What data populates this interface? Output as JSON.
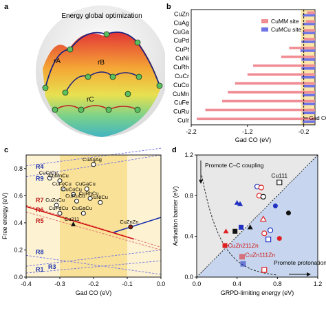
{
  "panel_labels": {
    "a": "a",
    "b": "b",
    "c": "c",
    "d": "d"
  },
  "panel_a": {
    "title": "Energy global optimization",
    "path_labels": [
      "rA",
      "rB",
      "rC"
    ]
  },
  "chart_data": [
    {
      "panel": "b",
      "type": "bar",
      "orientation": "horizontal",
      "categories": [
        "CuZn",
        "CuAg",
        "CuGa",
        "CuPd",
        "CuPt",
        "CuNi",
        "CuRh",
        "CuCr",
        "CuCo",
        "CuMn",
        "CuFe",
        "CuRu",
        "CuIr"
      ],
      "series": [
        {
          "name": "CuMM site",
          "color": "#f08c94",
          "values": [
            -0.14,
            -0.16,
            -0.2,
            -0.2,
            -0.46,
            -0.6,
            -1.1,
            -1.2,
            -1.42,
            -1.55,
            -1.65,
            -1.95,
            -2.1
          ]
        },
        {
          "name": "CuMCu site",
          "color": "#6e74e6",
          "values": [
            -0.22,
            -0.22,
            -0.22,
            -0.24,
            -0.26,
            -0.24,
            -0.24,
            -0.24,
            -0.2,
            -0.22,
            -0.22,
            -0.22,
            -0.22
          ]
        }
      ],
      "xlabel": "Gad CO (eV)",
      "xlim": [
        -2.2,
        0.0
      ],
      "xticks": [
        "-2.2",
        "-1.2",
        "-0.2"
      ],
      "reference_line": {
        "x": -0.2,
        "label": "Gad CO* on Cu"
      },
      "legend": "top-right"
    },
    {
      "panel": "c",
      "type": "scatter",
      "xlabel": "Gad CO (eV)",
      "ylabel": "Free energy (eV)",
      "xlim": [
        -0.4,
        0.0
      ],
      "ylim": [
        0.0,
        0.9
      ],
      "xticks": [
        "-0.4",
        "-0.3",
        "-0.2",
        "-0.1",
        "0.0"
      ],
      "yticks": [
        "0.0",
        "0.2",
        "0.4",
        "0.6",
        "0.8"
      ],
      "line_labels": [
        "R4",
        "R9",
        "R7",
        "R6",
        "R5",
        "R8",
        "R1",
        "R3"
      ],
      "points": [
        {
          "label": "CuAgAg",
          "x": -0.2,
          "y": 0.83,
          "marker": "circle"
        },
        {
          "label": "CuCrCu",
          "x": -0.33,
          "y": 0.73,
          "marker": "circle"
        },
        {
          "label": "CuMnCu",
          "x": -0.3,
          "y": 0.71,
          "marker": "circle"
        },
        {
          "label": "CuFeCu",
          "x": -0.29,
          "y": 0.65,
          "marker": "circle"
        },
        {
          "label": "CuGaCu",
          "x": -0.22,
          "y": 0.65,
          "marker": "circle"
        },
        {
          "label": "CuCoCu",
          "x": -0.26,
          "y": 0.61,
          "marker": "circle"
        },
        {
          "label": "CuRuCu",
          "x": -0.25,
          "y": 0.56,
          "marker": "circle"
        },
        {
          "label": "CuZnCu",
          "x": -0.31,
          "y": 0.53,
          "marker": "circle"
        },
        {
          "label": "CuNiCu",
          "x": -0.18,
          "y": 0.55,
          "marker": "circle"
        },
        {
          "label": "CuRhCu",
          "x": -0.21,
          "y": 0.58,
          "marker": "circle"
        },
        {
          "label": "CuGaCu",
          "x": -0.23,
          "y": 0.47,
          "marker": "circle"
        },
        {
          "label": "CuPdCu",
          "x": -0.3,
          "y": 0.47,
          "marker": "circle"
        },
        {
          "label": "Cu211",
          "x": -0.26,
          "y": 0.39,
          "marker": "triangle"
        },
        {
          "label": "CuZnZn",
          "x": -0.09,
          "y": 0.37,
          "marker": "filled-circle"
        }
      ]
    },
    {
      "panel": "d",
      "type": "scatter",
      "xlabel": "GRPD-limiting energy (eV)",
      "ylabel": "Activation barrier (eV)",
      "xlim": [
        0.0,
        1.2
      ],
      "ylim": [
        0.0,
        1.2
      ],
      "xticks": [
        "0.0",
        "0.4",
        "0.8",
        "1.2"
      ],
      "yticks": [
        "0.0",
        "0.4",
        "0.8",
        "1.2"
      ],
      "annotations": [
        "Promote C–C coupling",
        "Promote protonation",
        "Cu111",
        "CuZn211Zn",
        "CuZn111Zn"
      ],
      "points": [
        {
          "label": "Cu111",
          "x": 0.82,
          "y": 0.93,
          "marker": "open-square",
          "color": "#111111"
        },
        {
          "label": "CuZn211Zn",
          "x": 0.28,
          "y": 0.31,
          "marker": "filled-square",
          "color": "#e02020"
        },
        {
          "label": "CuZn111Zn",
          "x": 0.67,
          "y": 0.07,
          "marker": "open-square",
          "color": "#e02020"
        },
        {
          "x": 0.4,
          "y": 0.73,
          "marker": "filled-triangle",
          "color": "#2030c0"
        },
        {
          "x": 0.43,
          "y": 0.72,
          "marker": "filled-triangle",
          "color": "#2030c0"
        },
        {
          "x": 0.29,
          "y": 0.45,
          "marker": "filled-triangle",
          "color": "#e02020"
        },
        {
          "x": 0.38,
          "y": 0.45,
          "marker": "filled-square",
          "color": "#111111"
        },
        {
          "x": 0.44,
          "y": 0.49,
          "marker": "filled-square",
          "color": "#2030c0"
        },
        {
          "x": 0.53,
          "y": 0.49,
          "marker": "filled-triangle",
          "color": "#111111"
        },
        {
          "x": 0.6,
          "y": 0.89,
          "marker": "open-circle",
          "color": "#2030c0"
        },
        {
          "x": 0.64,
          "y": 0.88,
          "marker": "open-circle",
          "color": "#e02020"
        },
        {
          "x": 0.62,
          "y": 0.8,
          "marker": "open-circle",
          "color": "#e02020"
        },
        {
          "x": 0.66,
          "y": 0.79,
          "marker": "open-circle",
          "color": "#111111"
        },
        {
          "x": 0.78,
          "y": 0.7,
          "marker": "filled-circle",
          "color": "#2030c0"
        },
        {
          "x": 0.91,
          "y": 0.63,
          "marker": "filled-circle",
          "color": "#111111"
        },
        {
          "x": 0.66,
          "y": 0.57,
          "marker": "open-triangle",
          "color": "#e02020"
        },
        {
          "x": 0.73,
          "y": 0.46,
          "marker": "open-circle",
          "color": "#2030c0"
        },
        {
          "x": 0.67,
          "y": 0.43,
          "marker": "open-circle",
          "color": "#e02020"
        },
        {
          "x": 0.71,
          "y": 0.37,
          "marker": "open-square",
          "color": "#2030c0"
        },
        {
          "x": 0.82,
          "y": 0.38,
          "marker": "filled-circle",
          "color": "#e02020"
        },
        {
          "x": 0.45,
          "y": 0.2,
          "marker": "hatched-square",
          "color": "#e02020"
        },
        {
          "x": 0.46,
          "y": 0.13,
          "marker": "hatched-square",
          "color": "#2030c0"
        }
      ]
    }
  ]
}
